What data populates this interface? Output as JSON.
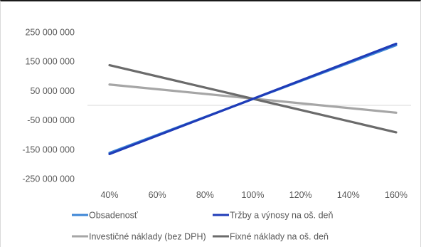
{
  "chart_data": {
    "type": "line",
    "title": "",
    "xlabel": "",
    "ylabel": "",
    "x": [
      "40%",
      "60%",
      "80%",
      "100%",
      "120%",
      "140%",
      "160%"
    ],
    "x_values": [
      40,
      160
    ],
    "ylim": [
      -250000000,
      250000000
    ],
    "y_ticks": [
      250000000,
      150000000,
      50000000,
      -50000000,
      -150000000,
      -250000000
    ],
    "y_tick_labels": [
      "250 000 000",
      "150 000 000",
      "50 000 000",
      "-50 000 000",
      "-150 000 000",
      "-250 000 000"
    ],
    "grid": false,
    "legend_position": "bottom",
    "series": [
      {
        "name": "Obsadenosť",
        "color": "#3d86d6",
        "values": [
          -162000000,
          205000000
        ]
      },
      {
        "name": "Tržby a výnosy na oš. deň",
        "color": "#1f3cb8",
        "values": [
          -166000000,
          210000000
        ]
      },
      {
        "name": "Investičné náklady (bez DPH)",
        "color": "#a6a6a6",
        "values": [
          71000000,
          -25000000
        ]
      },
      {
        "name": "Fixné náklady na oš. deň",
        "color": "#6b6b6b",
        "values": [
          137000000,
          -92000000
        ]
      }
    ]
  }
}
